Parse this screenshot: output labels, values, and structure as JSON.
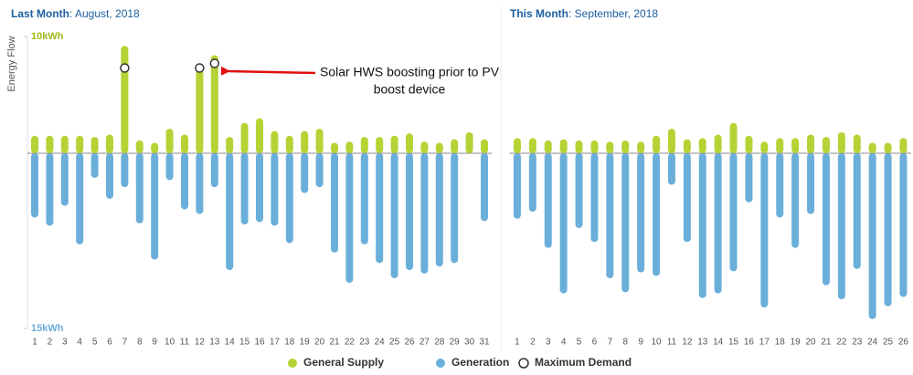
{
  "chart_data": [
    {
      "type": "bar",
      "title_label": "Last Month",
      "title_period": ": August, 2018",
      "y_label": "Energy Flow",
      "annotation": [
        "Solar HWS boosting prior to PV",
        "boost device"
      ],
      "categories": [
        "1",
        "2",
        "3",
        "4",
        "5",
        "6",
        "7",
        "8",
        "9",
        "10",
        "11",
        "12",
        "13",
        "14",
        "15",
        "16",
        "17",
        "18",
        "19",
        "20",
        "21",
        "22",
        "23",
        "24",
        "25",
        "26",
        "27",
        "28",
        "29",
        "30",
        "31"
      ],
      "series": [
        {
          "name": "General Supply",
          "color": "#b5d334",
          "values": [
            1.5,
            1.5,
            1.5,
            1.5,
            1.4,
            1.6,
            9.2,
            1.1,
            0.9,
            2.1,
            1.6,
            7.5,
            8.4,
            1.4,
            2.6,
            3.0,
            1.9,
            1.5,
            1.9,
            2.1,
            0.9,
            1.0,
            1.4,
            1.4,
            1.5,
            1.7,
            1.0,
            0.9,
            1.2,
            1.8,
            1.2
          ]
        },
        {
          "name": "Generation",
          "color": "#6aafda",
          "values": [
            -5.5,
            -6.2,
            -4.5,
            -7.8,
            -2.1,
            -3.9,
            -2.9,
            -6.0,
            -9.1,
            -2.3,
            -4.8,
            -5.2,
            -2.9,
            -10.0,
            -6.1,
            -5.9,
            -6.2,
            -7.7,
            -3.4,
            -2.9,
            -8.5,
            -11.1,
            -7.8,
            -9.4,
            -10.7,
            -10.0,
            -10.3,
            -9.7,
            -9.4,
            null,
            -5.8
          ]
        },
        {
          "name": "Maximum Demand",
          "color": "#333333",
          "values": [
            null,
            null,
            null,
            null,
            null,
            null,
            7.3,
            null,
            null,
            null,
            null,
            7.3,
            7.7,
            null,
            null,
            null,
            null,
            null,
            null,
            null,
            null,
            null,
            null,
            null,
            null,
            null,
            null,
            null,
            null,
            null,
            null
          ]
        }
      ],
      "ylim": [
        -15,
        10
      ],
      "yticks": [
        {
          "value": 10,
          "label": "10kWh"
        },
        {
          "value": -15,
          "label": "15kWh"
        }
      ]
    },
    {
      "type": "bar",
      "title_label": "This Month",
      "title_period": ": September, 2018",
      "categories": [
        "1",
        "2",
        "3",
        "4",
        "5",
        "6",
        "7",
        "8",
        "9",
        "10",
        "11",
        "12",
        "13",
        "14",
        "15",
        "16",
        "17",
        "18",
        "19",
        "20",
        "21",
        "22",
        "23",
        "24",
        "25",
        "26"
      ],
      "series": [
        {
          "color": "#b5d334",
          "values": [
            1.3,
            1.3,
            1.1,
            1.2,
            1.1,
            1.1,
            1.0,
            1.1,
            1.0,
            1.5,
            2.1,
            1.2,
            1.3,
            1.6,
            2.6,
            1.5,
            1.0,
            1.3,
            1.3,
            1.6,
            1.4,
            1.8,
            1.6,
            0.9,
            0.9,
            1.3
          ]
        },
        {
          "color": "#6aafda",
          "values": [
            -5.6,
            -5.0,
            -8.1,
            -12.0,
            -6.4,
            -7.6,
            -10.7,
            -11.9,
            -10.2,
            -10.5,
            -2.7,
            -7.6,
            -12.4,
            -12.0,
            -10.1,
            -4.2,
            -13.2,
            -5.5,
            -8.1,
            -5.2,
            -11.3,
            -12.5,
            -9.9,
            -14.2,
            -13.1,
            -12.3
          ]
        }
      ],
      "ylim": [
        -15,
        10
      ]
    }
  ]
}
